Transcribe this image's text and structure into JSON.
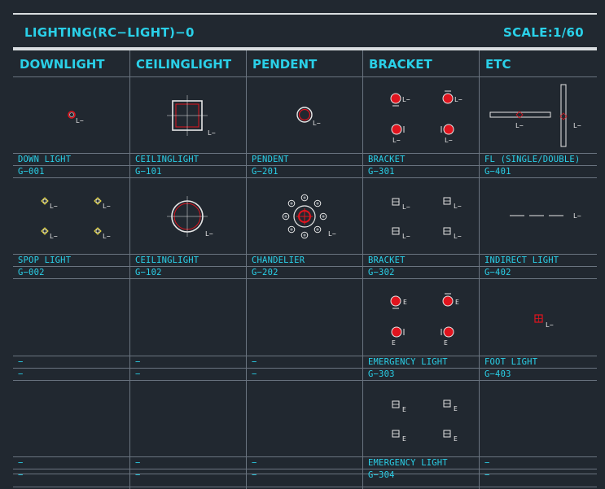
{
  "title": {
    "left": "LIGHTING(RC−LIGHT)−0",
    "right": "SCALE:1/60"
  },
  "columns": [
    "DOWNLIGHT",
    "CEILINGLIGHT",
    "PENDENT",
    "BRACKET",
    "ETC"
  ],
  "symbol_tag": "L−",
  "emergency_tag": "E",
  "rows": [
    {
      "names": [
        "DOWN LIGHT",
        "CEILINGLIGHT",
        "PENDENT",
        "BRACKET",
        "FL (SINGLE/DOUBLE)"
      ],
      "codes": [
        "G−001",
        "G−101",
        "G−201",
        "G−301",
        "G−401"
      ]
    },
    {
      "names": [
        "SPOP LIGHT",
        "CEILINGLIGHT",
        "CHANDELIER",
        "BRACKET",
        "INDIRECT LIGHT"
      ],
      "codes": [
        "G−002",
        "G−102",
        "G−202",
        "G−302",
        "G−402"
      ]
    },
    {
      "names": [
        "−",
        "−",
        "−",
        "EMERGENCY LIGHT",
        "FOOT LIGHT"
      ],
      "codes": [
        "−",
        "−",
        "−",
        "G−303",
        "G−403"
      ]
    },
    {
      "names": [
        "−",
        "−",
        "−",
        "EMERGENCY LIGHT",
        "−"
      ],
      "codes": [
        "−",
        "−",
        "−",
        "G−304",
        "−"
      ]
    }
  ],
  "colors": {
    "background": "#212830",
    "text": "#2ad0e8",
    "grid": "#6a7480",
    "symbol_red": "#e0141e",
    "symbol_white": "#e6e6e6",
    "symbol_yellow": "#f0e040"
  }
}
